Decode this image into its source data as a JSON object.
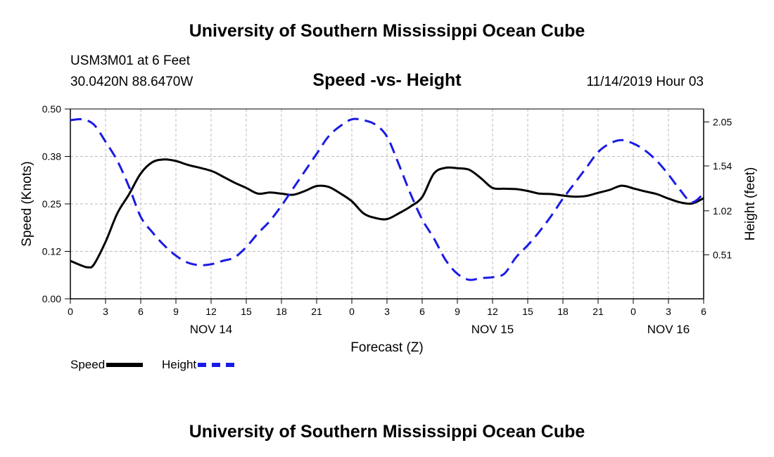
{
  "header": {
    "title": "University of Southern Mississippi Ocean Cube",
    "station": "USM3M01 at 6 Feet",
    "coords": "30.0420N 88.6470W",
    "datetime": "11/14/2019 Hour 03"
  },
  "footer": {
    "title": "University of Southern Mississippi Ocean Cube"
  },
  "legend": {
    "speed_label": "Speed",
    "height_label": "Height"
  },
  "colors": {
    "speed": "#000000",
    "height": "#1a1ae6",
    "grid": "#bbbbbb"
  },
  "chart_data": {
    "type": "line",
    "title": "Speed -vs- Height",
    "xlabel": "Forecast (Z)",
    "ylabel": "Speed (Knots)",
    "y2label": "Height (feet)",
    "xlim": [
      0,
      54
    ],
    "ylim": [
      0,
      0.5
    ],
    "y2lim": [
      0.0,
      2.2
    ],
    "x_tick_positions": [
      0,
      3,
      6,
      9,
      12,
      15,
      18,
      21,
      24,
      27,
      30,
      33,
      36,
      39,
      42,
      45,
      48,
      51,
      54
    ],
    "x_tick_labels": [
      "0",
      "3",
      "6",
      "9",
      "12",
      "15",
      "18",
      "21",
      "0",
      "3",
      "6",
      "9",
      "12",
      "15",
      "18",
      "21",
      "0",
      "3",
      "6"
    ],
    "date_labels": [
      {
        "x": 12,
        "label": "NOV 14"
      },
      {
        "x": 36,
        "label": "NOV 15"
      },
      {
        "x": 51,
        "label": "NOV 16"
      }
    ],
    "y_ticks": [
      0,
      0.125,
      0.25,
      0.375,
      0.5
    ],
    "y_tick_labels": [
      "0.00",
      "0.12",
      "0.25",
      "0.38",
      "0.50"
    ],
    "y2_ticks": [
      0.51,
      1.02,
      1.54,
      2.05
    ],
    "y2_tick_labels": [
      "0.51",
      "1.02",
      "1.54",
      "2.05"
    ],
    "grid": true,
    "series": [
      {
        "name": "Speed",
        "axis": "left",
        "x": [
          0,
          1,
          1.5,
          2,
          3,
          4,
          5,
          6,
          7,
          8,
          9,
          10,
          12,
          13,
          14,
          15,
          16,
          17,
          18,
          19,
          20,
          21,
          22,
          23,
          24,
          25,
          26,
          27,
          28,
          29,
          30,
          31,
          32,
          33,
          34,
          35,
          36,
          37,
          38,
          39,
          40,
          41,
          42,
          43,
          44,
          45,
          46,
          47,
          48,
          49,
          50,
          51,
          52,
          53,
          54
        ],
        "values": [
          0.1,
          0.087,
          0.083,
          0.09,
          0.15,
          0.225,
          0.275,
          0.33,
          0.36,
          0.367,
          0.363,
          0.353,
          0.337,
          0.322,
          0.306,
          0.292,
          0.277,
          0.28,
          0.277,
          0.274,
          0.284,
          0.297,
          0.295,
          0.278,
          0.257,
          0.225,
          0.213,
          0.21,
          0.225,
          0.243,
          0.268,
          0.33,
          0.345,
          0.344,
          0.34,
          0.318,
          0.292,
          0.29,
          0.289,
          0.284,
          0.277,
          0.276,
          0.272,
          0.269,
          0.271,
          0.279,
          0.287,
          0.298,
          0.291,
          0.283,
          0.276,
          0.264,
          0.254,
          0.251,
          0.265
        ]
      },
      {
        "name": "Height",
        "axis": "right",
        "x": [
          0,
          1,
          2,
          3,
          4,
          5,
          6,
          7,
          8,
          9,
          10,
          11,
          12,
          13,
          14,
          15,
          16,
          17,
          18,
          19,
          20,
          21,
          22,
          23,
          24,
          25,
          26,
          27,
          28,
          29,
          30,
          31,
          32,
          33,
          34,
          35,
          36,
          37,
          38,
          39,
          40,
          41,
          42,
          43,
          44,
          45,
          46,
          47,
          48,
          49,
          50,
          51,
          52,
          53,
          54
        ],
        "values": [
          2.07,
          2.08,
          2.02,
          1.82,
          1.6,
          1.3,
          0.95,
          0.77,
          0.62,
          0.5,
          0.42,
          0.39,
          0.4,
          0.44,
          0.48,
          0.6,
          0.76,
          0.9,
          1.08,
          1.28,
          1.48,
          1.68,
          1.88,
          2.0,
          2.08,
          2.07,
          2.02,
          1.88,
          1.56,
          1.22,
          0.92,
          0.7,
          0.45,
          0.29,
          0.22,
          0.24,
          0.25,
          0.29,
          0.48,
          0.62,
          0.78,
          0.96,
          1.16,
          1.34,
          1.52,
          1.7,
          1.8,
          1.84,
          1.8,
          1.72,
          1.6,
          1.44,
          1.26,
          1.12,
          1.22
        ]
      }
    ]
  }
}
